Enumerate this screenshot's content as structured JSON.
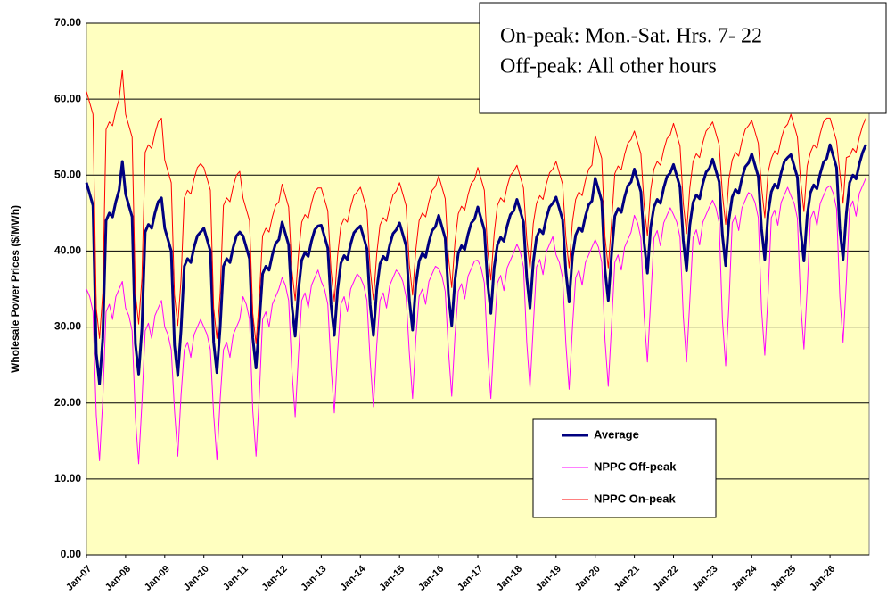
{
  "chart_data": {
    "type": "line",
    "y_label": "Wholesale Power Prices ($/MWh)",
    "annotations": [
      "On-peak: Mon.-Sat. Hrs. 7- 22",
      "Off-peak: All other hours"
    ],
    "categories": [
      "Jan-07",
      null,
      null,
      null,
      null,
      null,
      null,
      null,
      null,
      null,
      null,
      null,
      "Jan-08",
      null,
      null,
      null,
      null,
      null,
      null,
      null,
      null,
      null,
      null,
      null,
      "Jan-09",
      null,
      null,
      null,
      null,
      null,
      null,
      null,
      null,
      null,
      null,
      null,
      "Jan-10",
      null,
      null,
      null,
      null,
      null,
      null,
      null,
      null,
      null,
      null,
      null,
      "Jan-11",
      null,
      null,
      null,
      null,
      null,
      null,
      null,
      null,
      null,
      null,
      null,
      "Jan-12",
      null,
      null,
      null,
      null,
      null,
      null,
      null,
      null,
      null,
      null,
      null,
      "Jan-13",
      null,
      null,
      null,
      null,
      null,
      null,
      null,
      null,
      null,
      null,
      null,
      "Jan-14",
      null,
      null,
      null,
      null,
      null,
      null,
      null,
      null,
      null,
      null,
      null,
      "Jan-15",
      null,
      null,
      null,
      null,
      null,
      null,
      null,
      null,
      null,
      null,
      null,
      "Jan-16",
      null,
      null,
      null,
      null,
      null,
      null,
      null,
      null,
      null,
      null,
      null,
      "Jan-17",
      null,
      null,
      null,
      null,
      null,
      null,
      null,
      null,
      null,
      null,
      null,
      "Jan-18",
      null,
      null,
      null,
      null,
      null,
      null,
      null,
      null,
      null,
      null,
      null,
      "Jan-19",
      null,
      null,
      null,
      null,
      null,
      null,
      null,
      null,
      null,
      null,
      null,
      "Jan-20",
      null,
      null,
      null,
      null,
      null,
      null,
      null,
      null,
      null,
      null,
      null,
      "Jan-21",
      null,
      null,
      null,
      null,
      null,
      null,
      null,
      null,
      null,
      null,
      null,
      "Jan-22",
      null,
      null,
      null,
      null,
      null,
      null,
      null,
      null,
      null,
      null,
      null,
      "Jan-23",
      null,
      null,
      null,
      null,
      null,
      null,
      null,
      null,
      null,
      null,
      null,
      "Jan-24",
      null,
      null,
      null,
      null,
      null,
      null,
      null,
      null,
      null,
      null,
      null,
      "Jan-25",
      null,
      null,
      null,
      null,
      null,
      null,
      null,
      null,
      null,
      null,
      null,
      "Jan-26",
      null,
      null,
      null,
      null,
      null,
      null,
      null,
      null,
      null,
      null,
      null
    ],
    "series": [
      {
        "name": "Average",
        "color": "#000080",
        "width": 3,
        "values": [
          49,
          47.5,
          46,
          26.5,
          22.5,
          28.5,
          44,
          45,
          44.5,
          46.5,
          48,
          51.8,
          47.5,
          46,
          44.5,
          27.8,
          23.8,
          29.8,
          42.5,
          43.5,
          43,
          45,
          46.5,
          47,
          43,
          41.5,
          40,
          27.6,
          23.6,
          29.6,
          38,
          39,
          38.5,
          40.5,
          42,
          42.5,
          43,
          41.5,
          40,
          28,
          24,
          30,
          38,
          39,
          38.5,
          40.5,
          42,
          42.5,
          42,
          40.5,
          39,
          28.6,
          24.6,
          30.6,
          37,
          38,
          37.5,
          39.5,
          41,
          41.5,
          43.8,
          42.3,
          40.8,
          32.8,
          28.8,
          34.8,
          38.8,
          39.8,
          39.3,
          41.3,
          42.8,
          43.3,
          43.4,
          41.9,
          40.4,
          32.9,
          28.9,
          34.9,
          38.4,
          39.4,
          38.9,
          40.9,
          42.4,
          42.9,
          43.3,
          41.8,
          40.3,
          32.9,
          28.9,
          34.9,
          38.3,
          39.3,
          38.8,
          40.8,
          42.3,
          42.8,
          43.7,
          42.2,
          40.7,
          33.6,
          29.6,
          35.6,
          38.7,
          39.7,
          39.2,
          41.2,
          42.7,
          43.2,
          44.7,
          43.2,
          41.7,
          34.2,
          30.2,
          36.2,
          39.7,
          40.7,
          40.2,
          42.2,
          43.7,
          44.2,
          45.8,
          44.3,
          42.8,
          35.8,
          31.8,
          37.8,
          40.8,
          41.8,
          41.3,
          43.3,
          44.8,
          45.3,
          46.8,
          45.3,
          43.8,
          36.5,
          32.5,
          38.5,
          41.8,
          42.8,
          42.3,
          44.3,
          45.8,
          46.3,
          47.1,
          45.6,
          44.1,
          37.3,
          33.3,
          39.3,
          42.1,
          43.1,
          42.6,
          44.6,
          46.1,
          46.6,
          49.6,
          48.1,
          46.6,
          37.5,
          33.5,
          39.5,
          44.6,
          45.6,
          45.1,
          47.1,
          48.6,
          49.1,
          50.8,
          49.3,
          47.8,
          41.1,
          37.1,
          43.1,
          45.8,
          46.8,
          46.3,
          48.3,
          49.8,
          50.3,
          51.4,
          49.9,
          48.4,
          41.4,
          37.4,
          43.4,
          46.4,
          47.4,
          46.9,
          48.9,
          50.4,
          50.9,
          52.1,
          50.6,
          49.1,
          42.1,
          38.1,
          44.1,
          47.1,
          48.1,
          47.6,
          49.6,
          51.1,
          51.6,
          52.8,
          51.3,
          49.8,
          42.9,
          38.9,
          44.9,
          47.8,
          48.8,
          48.3,
          50.3,
          51.8,
          52.3,
          52.7,
          51.2,
          49.7,
          42.7,
          38.7,
          44.7,
          47.7,
          48.7,
          48.2,
          50.2,
          51.7,
          52.2,
          54,
          52.5,
          51,
          42.9,
          38.9,
          44.9,
          49,
          50,
          49.5,
          51.5,
          53,
          54
        ]
      },
      {
        "name": "NPPC Off-peak",
        "color": "#ff00ff",
        "width": 1,
        "values": [
          35,
          34,
          32,
          18.4,
          12.4,
          20.4,
          32,
          33,
          31,
          34,
          35,
          36,
          32.5,
          31.5,
          29.5,
          18,
          12,
          20,
          29.5,
          30.5,
          28.5,
          31.5,
          32.5,
          33.5,
          30,
          29,
          27,
          19,
          13,
          21,
          27,
          28,
          26,
          29,
          30,
          31,
          30,
          29,
          27,
          18.5,
          12.5,
          20.5,
          27,
          28,
          26,
          29,
          30,
          31,
          34,
          33,
          31,
          19,
          13,
          21,
          31,
          32,
          30,
          33,
          34,
          35,
          36.5,
          35.5,
          33.5,
          24.2,
          18.2,
          26.2,
          33.5,
          34.5,
          32.5,
          35.5,
          36.5,
          37.5,
          36,
          35,
          33,
          24.7,
          18.7,
          26.7,
          33,
          34,
          32,
          35,
          36,
          37,
          36.5,
          35.5,
          33.5,
          25.5,
          19.5,
          27.5,
          33.5,
          34.5,
          32.5,
          35.5,
          36.5,
          37.5,
          37,
          36,
          34,
          26.6,
          20.6,
          28.6,
          34,
          35,
          33,
          36,
          37,
          38,
          37.7,
          36.7,
          34.7,
          26.9,
          20.9,
          28.9,
          34.7,
          35.7,
          33.7,
          36.7,
          37.7,
          38.7,
          38.8,
          37.8,
          35.8,
          26.6,
          20.6,
          28.6,
          35.8,
          36.8,
          34.8,
          37.8,
          38.8,
          39.8,
          40.9,
          39.9,
          37.9,
          28,
          22,
          30,
          37.9,
          38.9,
          36.9,
          39.9,
          40.9,
          41.9,
          39.5,
          38.5,
          36.5,
          27.8,
          21.8,
          29.8,
          36.5,
          37.5,
          35.5,
          38.5,
          39.5,
          40.5,
          41.5,
          40.5,
          38.5,
          28.2,
          22.2,
          30.2,
          38.5,
          39.5,
          37.5,
          40.5,
          41.5,
          42.5,
          44.7,
          43.7,
          41.7,
          31.4,
          25.4,
          33.4,
          41.7,
          42.7,
          40.7,
          43.7,
          44.7,
          45.7,
          44.8,
          43.8,
          41.8,
          31.4,
          25.4,
          33.4,
          41.8,
          42.8,
          40.8,
          43.8,
          44.8,
          45.8,
          46.7,
          45.7,
          43.7,
          30.9,
          24.9,
          32.9,
          43.7,
          44.7,
          42.7,
          45.7,
          46.7,
          47.7,
          47.4,
          46.4,
          44.4,
          32.3,
          26.3,
          34.3,
          44.4,
          45.4,
          43.4,
          46.4,
          47.4,
          48.4,
          47.3,
          46.3,
          44.3,
          33.1,
          27.1,
          35.1,
          44.3,
          45.3,
          43.3,
          46.3,
          47.3,
          48.3,
          48.6,
          47.6,
          45.6,
          34,
          28,
          36,
          45.6,
          46.6,
          44.6,
          47.6,
          48.6,
          49.6
        ]
      },
      {
        "name": "NPPC On-peak",
        "color": "#ff0000",
        "width": 1,
        "values": [
          61,
          59.5,
          58,
          32.5,
          28.5,
          34.5,
          56,
          57,
          56.5,
          58.5,
          60,
          63.8,
          58,
          56.5,
          55,
          34.4,
          30.4,
          36.4,
          53,
          54,
          53.5,
          55.5,
          57,
          57.5,
          52,
          50.5,
          49,
          34.2,
          30.2,
          36.2,
          47,
          48,
          47.5,
          49.5,
          51,
          51.5,
          51,
          49.5,
          48,
          32.5,
          28.5,
          34.5,
          46,
          47,
          46.5,
          48.5,
          50,
          50.5,
          47,
          45.5,
          44,
          31.8,
          27.8,
          33.8,
          42,
          43,
          42.5,
          44.5,
          46,
          46.5,
          48.8,
          47.3,
          45.8,
          37.5,
          33.5,
          39.5,
          43.8,
          44.8,
          44.3,
          46.3,
          47.8,
          48.3,
          48.3,
          46.8,
          45.3,
          37.4,
          33.4,
          39.4,
          43.3,
          44.3,
          43.8,
          45.8,
          47.3,
          47.8,
          48.4,
          46.9,
          45.4,
          37.6,
          33.6,
          39.6,
          43.4,
          44.4,
          43.9,
          45.9,
          47.4,
          47.9,
          49,
          47.5,
          46,
          38.2,
          34.2,
          40.2,
          44,
          45,
          44.5,
          46.5,
          48,
          48.5,
          49.9,
          48.4,
          46.9,
          39.2,
          35.2,
          41.2,
          44.9,
          45.9,
          45.4,
          47.4,
          48.9,
          49.4,
          51,
          49.5,
          48,
          40.2,
          36.2,
          42.2,
          46,
          47,
          46.5,
          48.5,
          50,
          50.5,
          51.3,
          49.8,
          48.3,
          41.6,
          37.6,
          43.6,
          46.3,
          47.3,
          46.8,
          48.8,
          50.3,
          50.8,
          51.8,
          50.3,
          48.8,
          41.8,
          37.8,
          43.8,
          46.8,
          47.8,
          47.3,
          49.3,
          50.8,
          51.3,
          55.2,
          53.7,
          52.2,
          41.8,
          37.8,
          43.8,
          50.2,
          51.2,
          50.7,
          52.7,
          54.2,
          54.7,
          55.8,
          54.3,
          52.8,
          46,
          42,
          48,
          50.8,
          51.8,
          51.3,
          53.3,
          54.8,
          55.3,
          56.8,
          55.3,
          53.8,
          46.3,
          42.3,
          48.3,
          51.8,
          52.8,
          52.3,
          54.3,
          55.8,
          56.3,
          57,
          55.5,
          54,
          47.5,
          43.5,
          49.5,
          52,
          53,
          52.5,
          54.5,
          56,
          56.5,
          57.2,
          55.7,
          54.2,
          48.4,
          44.4,
          50.4,
          52.2,
          53.2,
          52.7,
          54.7,
          56.2,
          56.7,
          58,
          56.5,
          55,
          49.2,
          45.2,
          51.2,
          53,
          54,
          53.5,
          55.5,
          57,
          57.5,
          57.5,
          56,
          54.5,
          50.3,
          46.3,
          52.3,
          52.5,
          53.5,
          53,
          55,
          56.5,
          57.5
        ]
      }
    ],
    "ylim": [
      0,
      70
    ],
    "yticks": [
      {
        "value": 0,
        "label": "0.00"
      },
      {
        "value": 10,
        "label": "10.00"
      },
      {
        "value": 20,
        "label": "20.00"
      },
      {
        "value": 30,
        "label": "30.00"
      },
      {
        "value": 40,
        "label": "40.00"
      },
      {
        "value": 50,
        "label": "50.00"
      },
      {
        "value": 60,
        "label": "60.00"
      },
      {
        "value": 70,
        "label": "70.00"
      }
    ],
    "grid": true,
    "legend": "bottom",
    "background": "#ffffc0"
  }
}
